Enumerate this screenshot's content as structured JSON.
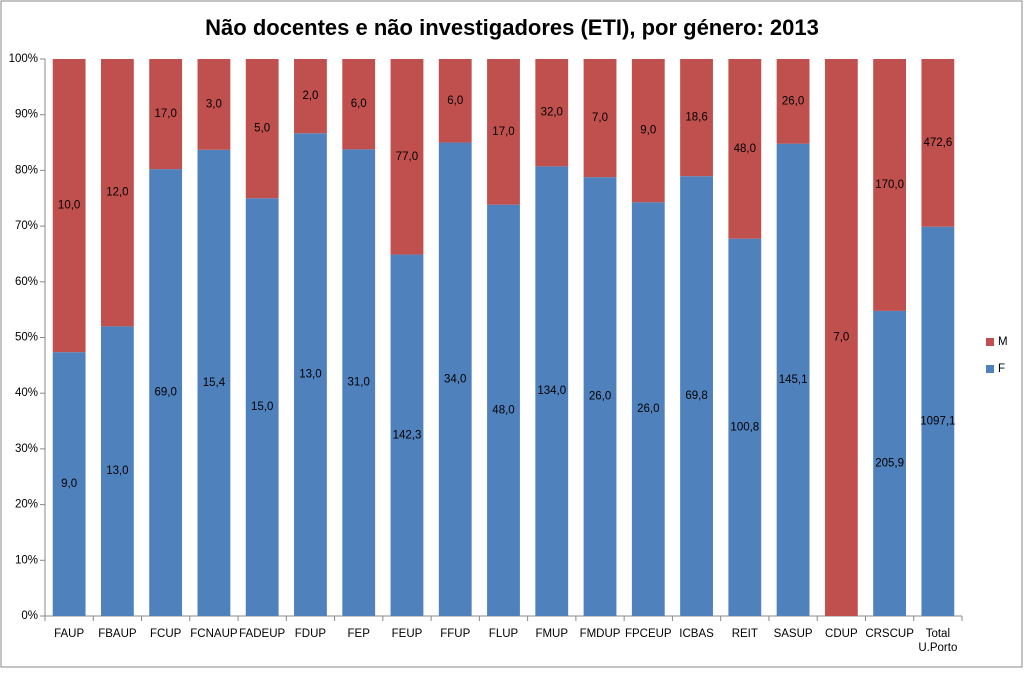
{
  "chart_data": {
    "type": "bar",
    "stacking": "percent",
    "title": "Não docentes e não investigadores (ETI), por género: 2013",
    "categories": [
      "FAUP",
      "FBAUP",
      "FCUP",
      "FCNAUP",
      "FADEUP",
      "FDUP",
      "FEP",
      "FEUP",
      "FFUP",
      "FLUP",
      "FMUP",
      "FMDUP",
      "FPCEUP",
      "ICBAS",
      "REIT",
      "SASUP",
      "CDUP",
      "CRSCUP",
      "Total U.Porto"
    ],
    "series": [
      {
        "name": "F",
        "color": "#4f81bd",
        "values": [
          9,
          13,
          69,
          15.4,
          15,
          13,
          31,
          142.3,
          34,
          48,
          134,
          26,
          26,
          69.8,
          100.8,
          145.1,
          null,
          205.9,
          1097.1
        ],
        "value_labels": [
          "9,0",
          "13,0",
          "69,0",
          "15,4",
          "15,0",
          "13,0",
          "31,0",
          "142,3",
          "34,0",
          "48,0",
          "134,0",
          "26,0",
          "26,0",
          "69,8",
          "100,8",
          "145,1",
          null,
          "205,9",
          "1097,1"
        ]
      },
      {
        "name": "M",
        "color": "#c0504d",
        "values": [
          10,
          12,
          17,
          3,
          5,
          2,
          6,
          77,
          6,
          17,
          32,
          7,
          9,
          18.6,
          48,
          26,
          7,
          170,
          472.6
        ],
        "value_labels": [
          "10,0",
          "12,0",
          "17,0",
          "3,0",
          "5,0",
          "2,0",
          "6,0",
          "77,0",
          "6,0",
          "17,0",
          "32,0",
          "7,0",
          "9,0",
          "18,6",
          "48,0",
          "26,0",
          "7,0",
          "170,0",
          "472,6"
        ]
      }
    ],
    "ylim": [
      0,
      100
    ],
    "yticks": [
      {
        "value": 0,
        "label": "0%"
      },
      {
        "value": 10,
        "label": "10%"
      },
      {
        "value": 20,
        "label": "20%"
      },
      {
        "value": 30,
        "label": "30%"
      },
      {
        "value": 40,
        "label": "40%"
      },
      {
        "value": 50,
        "label": "50%"
      },
      {
        "value": 60,
        "label": "60%"
      },
      {
        "value": 70,
        "label": "70%"
      },
      {
        "value": 80,
        "label": "80%"
      },
      {
        "value": 90,
        "label": "90%"
      },
      {
        "value": 100,
        "label": "100%"
      }
    ],
    "grid": false,
    "legend": "right"
  }
}
